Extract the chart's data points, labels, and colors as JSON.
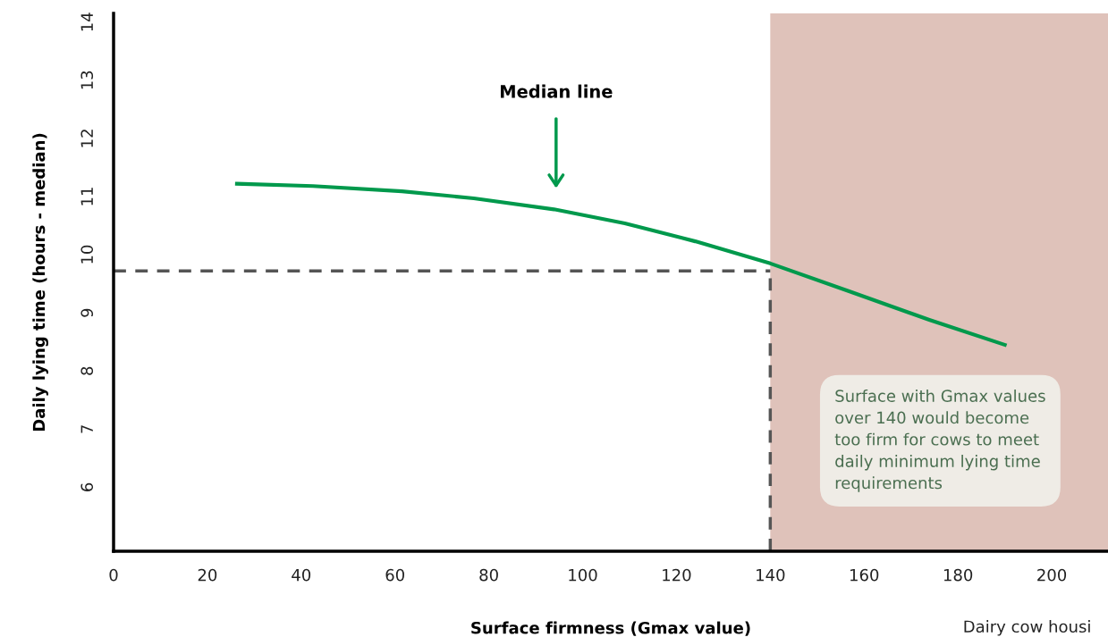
{
  "chart_data": {
    "type": "line",
    "xlabel": "Surface firmness (Gmax value)",
    "ylabel": "Daily lying time (hours - median)",
    "xlim": [
      0,
      212
    ],
    "xticks": [
      0,
      20,
      40,
      60,
      80,
      100,
      120,
      140,
      160,
      180,
      200
    ],
    "ylim": [
      4.9,
      14.15
    ],
    "yticks": [
      6,
      7,
      8,
      9,
      10,
      11,
      12,
      13,
      14
    ],
    "grid": false,
    "marker": "none",
    "line_style": "solid",
    "series": [
      {
        "color": "#00994c",
        "x": [
          26.3,
          42.5,
          61.5,
          76.8,
          93.9,
          109,
          124,
          140,
          156.8,
          173.9,
          190
        ],
        "values": [
          11.22,
          11.18,
          11.09,
          10.97,
          10.78,
          10.54,
          10.23,
          9.85,
          9.37,
          8.88,
          8.45
        ]
      }
    ],
    "ref_lines": [
      {
        "axis": "y",
        "value": 9.72,
        "color": "#555555",
        "line_style": "dashed"
      },
      {
        "axis": "x",
        "value": 140,
        "color": "#555555",
        "line_style": "dashed"
      }
    ],
    "bands": [
      {
        "axis": "x",
        "from": 140,
        "to": 212,
        "color": "#dfc2ba"
      }
    ],
    "annotations": [
      "Median line",
      "Surface with Gmax values\nover 140 would become\ntoo firm for cows to meet\ndaily minimum lying time\nrequirements",
      "Dairy cow housi"
    ]
  }
}
